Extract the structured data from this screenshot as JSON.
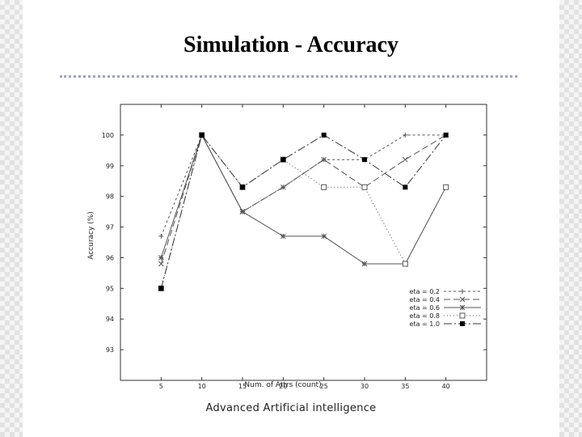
{
  "slide": {
    "title": "Simulation - Accuracy",
    "footer": "Advanced Artificial intelligence"
  },
  "chart_data": {
    "type": "line",
    "title": "",
    "xlabel": "Num. of Attrs (count)",
    "ylabel": "Accuracy (%)",
    "x": [
      5,
      10,
      15,
      20,
      25,
      30,
      35,
      40
    ],
    "xlim": [
      0,
      45
    ],
    "ylim": [
      92,
      101
    ],
    "yticks": [
      93,
      94,
      95,
      96,
      97,
      98,
      99,
      100
    ],
    "grid": false,
    "legend_position": "bottom-right",
    "series": [
      {
        "name": "eta = 0.2",
        "marker": "plus",
        "dash": "3,3",
        "color": "#555555",
        "values": [
          96.7,
          100,
          97.5,
          98.3,
          99.2,
          99.2,
          100,
          100
        ]
      },
      {
        "name": "eta = 0.4",
        "marker": "x",
        "dash": "8,4",
        "color": "#555555",
        "values": [
          95.8,
          100,
          97.5,
          98.3,
          99.2,
          98.3,
          99.2,
          100
        ]
      },
      {
        "name": "eta = 0.6",
        "marker": "star",
        "dash": "",
        "color": "#555555",
        "values": [
          96.0,
          100,
          97.5,
          96.7,
          96.7,
          95.8,
          95.8,
          98.3
        ]
      },
      {
        "name": "eta = 0.8",
        "marker": "square",
        "dash": "1,3",
        "color": "#555555",
        "values": [
          95.0,
          100,
          98.3,
          99.2,
          98.3,
          98.3,
          95.8,
          98.3
        ]
      },
      {
        "name": "eta = 1.0",
        "marker": "fsquare",
        "dash": "10,3,2,3",
        "color": "#333333",
        "values": [
          95.0,
          100,
          98.3,
          99.2,
          100,
          99.2,
          98.3,
          100
        ]
      }
    ]
  }
}
